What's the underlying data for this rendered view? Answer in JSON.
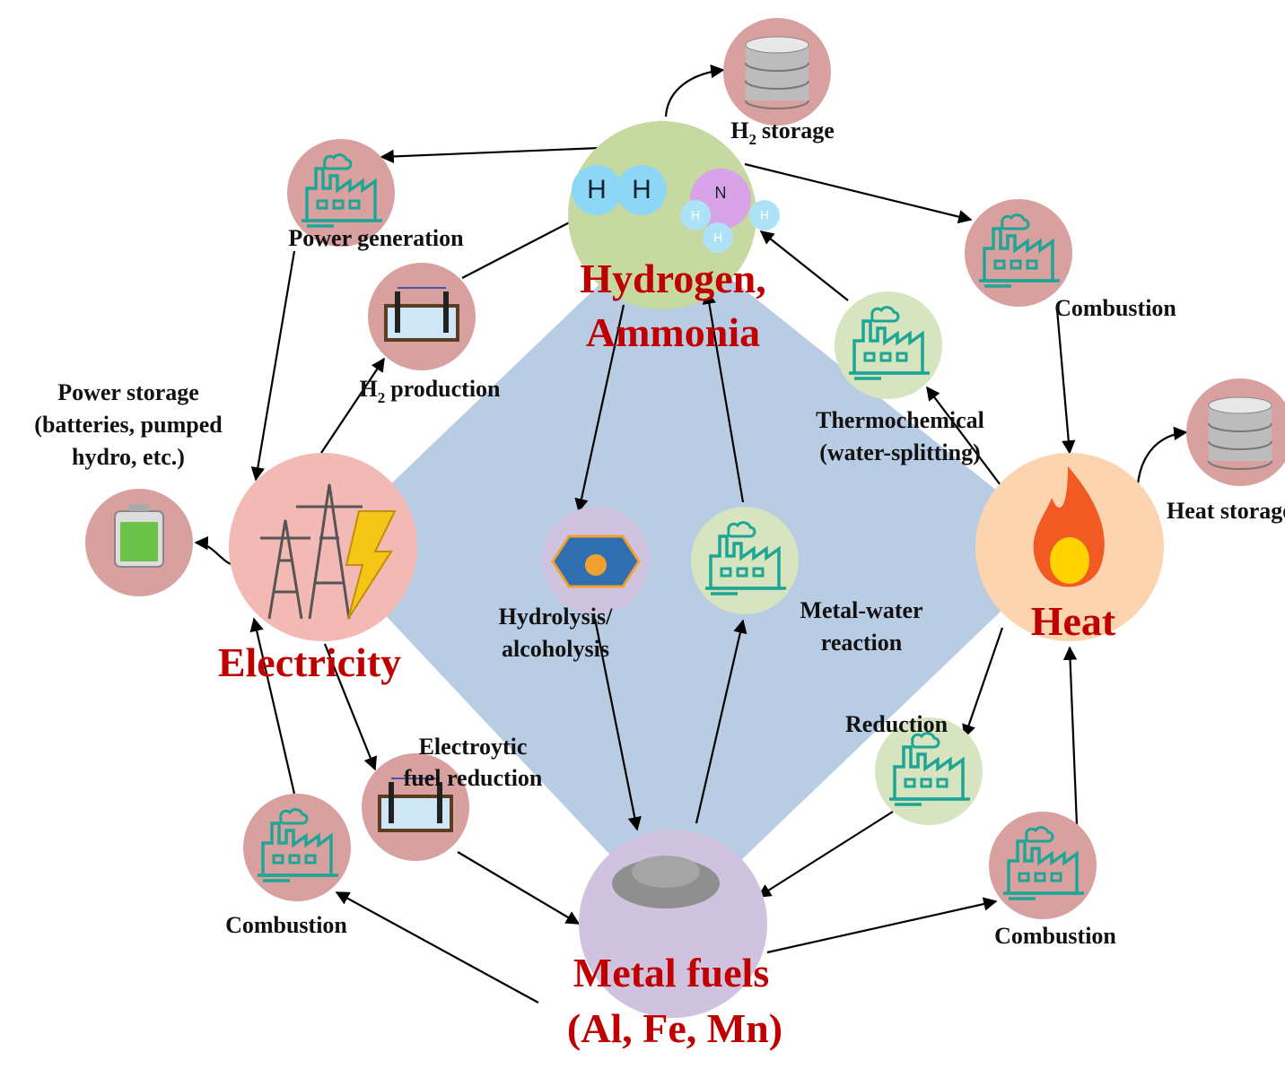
{
  "hubs": {
    "hydrogen": [
      "Hydrogen,",
      "Ammonia"
    ],
    "electricity": "Electricity",
    "heat": "Heat",
    "metal_fuels": [
      "Metal fuels",
      "(Al, Fe, Mn)"
    ]
  },
  "icons": {
    "h2_atoms": [
      "H",
      "H"
    ],
    "nh3_atoms": [
      "N",
      "H",
      "H",
      "H"
    ]
  },
  "processes": {
    "h2_storage": {
      "symbol": "H",
      "subscript": "2",
      "text": "storage"
    },
    "power_generation": "Power generation",
    "combustion_top": "Combustion",
    "h2_production": {
      "symbol": "H",
      "subscript": "2",
      "text": "production"
    },
    "thermochemical": [
      "Thermochemical",
      "(water-splitting)"
    ],
    "heat_storage": "Heat storage",
    "power_storage": [
      "Power storage",
      "(batteries, pumped",
      "hydro, etc.)"
    ],
    "hydrolysis": [
      "Hydrolysis/",
      "alcoholysis"
    ],
    "metal_water": [
      "Metal-water",
      "reaction"
    ],
    "reduction": "Reduction",
    "electrolytic": [
      "Electroytic",
      "fuel reduction"
    ],
    "combustion_left": "Combustion",
    "combustion_right": "Combustion"
  }
}
